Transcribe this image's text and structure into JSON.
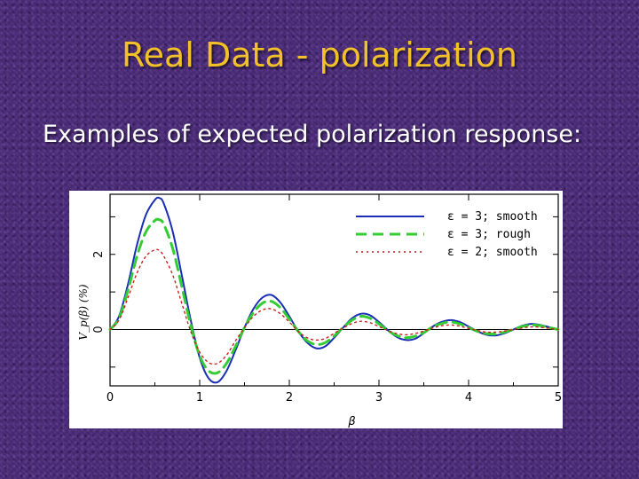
{
  "slide": {
    "title": "Real Data - polarization",
    "subtitle": "Examples of expected polarization response:"
  },
  "colors": {
    "title": "#f2c12a",
    "background": "#4a2a78",
    "series_smooth3": "#1a2fb5",
    "series_rough3": "#33cc33",
    "series_smooth2": "#cc1f1f"
  },
  "chart_data": {
    "type": "line",
    "xlabel": "β",
    "ylabel": "V_p(β) (%)",
    "xlim": [
      0,
      5
    ],
    "ylim": [
      -1.5,
      3.6
    ],
    "xticks": [
      0,
      1,
      2,
      3,
      4,
      5
    ],
    "ytick_labels": [
      0,
      2
    ],
    "grid": false,
    "legend_position": "top-right",
    "zero_line": true,
    "x": [
      0,
      0.1,
      0.2,
      0.3,
      0.4,
      0.5,
      0.55,
      0.6,
      0.7,
      0.8,
      0.9,
      1.0,
      1.1,
      1.2,
      1.3,
      1.4,
      1.5,
      1.6,
      1.7,
      1.8,
      1.9,
      2.0,
      2.1,
      2.2,
      2.3,
      2.4,
      2.5,
      2.6,
      2.7,
      2.8,
      2.9,
      3.0,
      3.1,
      3.2,
      3.3,
      3.4,
      3.5,
      3.6,
      3.7,
      3.8,
      3.9,
      4.0,
      4.1,
      4.2,
      4.3,
      4.4,
      4.5,
      4.6,
      4.7,
      4.8,
      4.9,
      5.0
    ],
    "series": [
      {
        "name": "ε = 3; smooth",
        "style": "solid",
        "values": [
          0,
          0.35,
          1.2,
          2.25,
          3.05,
          3.45,
          3.5,
          3.35,
          2.6,
          1.45,
          0.25,
          -0.75,
          -1.3,
          -1.4,
          -1.1,
          -0.55,
          0.05,
          0.55,
          0.85,
          0.92,
          0.72,
          0.35,
          -0.05,
          -0.35,
          -0.5,
          -0.45,
          -0.22,
          0.05,
          0.3,
          0.42,
          0.38,
          0.2,
          -0.02,
          -0.2,
          -0.28,
          -0.25,
          -0.1,
          0.08,
          0.2,
          0.25,
          0.2,
          0.08,
          -0.05,
          -0.14,
          -0.16,
          -0.1,
          0,
          0.1,
          0.15,
          0.12,
          0.06,
          0
        ]
      },
      {
        "name": "ε = 3; rough",
        "style": "dashed",
        "values": [
          0,
          0.3,
          1.05,
          1.95,
          2.6,
          2.9,
          2.92,
          2.8,
          2.15,
          1.15,
          0.12,
          -0.7,
          -1.1,
          -1.15,
          -0.9,
          -0.45,
          0.05,
          0.45,
          0.7,
          0.75,
          0.58,
          0.28,
          -0.05,
          -0.3,
          -0.4,
          -0.35,
          -0.17,
          0.05,
          0.25,
          0.35,
          0.3,
          0.15,
          -0.03,
          -0.16,
          -0.22,
          -0.18,
          -0.08,
          0.07,
          0.16,
          0.2,
          0.15,
          0.05,
          -0.05,
          -0.11,
          -0.12,
          -0.07,
          0,
          0.08,
          0.12,
          0.1,
          0.05,
          0
        ]
      },
      {
        "name": "ε = 2; smooth",
        "style": "dotted",
        "values": [
          0,
          0.25,
          0.85,
          1.5,
          1.95,
          2.12,
          2.1,
          1.95,
          1.45,
          0.7,
          -0.05,
          -0.6,
          -0.88,
          -0.9,
          -0.68,
          -0.3,
          0.05,
          0.35,
          0.52,
          0.55,
          0.42,
          0.2,
          -0.05,
          -0.22,
          -0.28,
          -0.24,
          -0.1,
          0.04,
          0.16,
          0.22,
          0.18,
          0.08,
          -0.03,
          -0.11,
          -0.14,
          -0.11,
          -0.04,
          0.04,
          0.1,
          0.12,
          0.09,
          0.03,
          -0.03,
          -0.07,
          -0.07,
          -0.04,
          0,
          0.04,
          0.07,
          0.06,
          0.03,
          0
        ]
      }
    ]
  }
}
